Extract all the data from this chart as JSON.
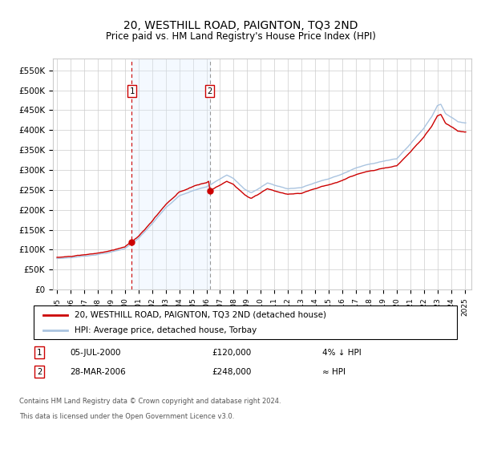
{
  "title": "20, WESTHILL ROAD, PAIGNTON, TQ3 2ND",
  "subtitle": "Price paid vs. HM Land Registry's House Price Index (HPI)",
  "title_fontsize": 10,
  "subtitle_fontsize": 8.5,
  "ylabel_ticks": [
    "£0",
    "£50K",
    "£100K",
    "£150K",
    "£200K",
    "£250K",
    "£300K",
    "£350K",
    "£400K",
    "£450K",
    "£500K",
    "£550K"
  ],
  "ytick_vals": [
    0,
    50000,
    100000,
    150000,
    200000,
    250000,
    300000,
    350000,
    400000,
    450000,
    500000,
    550000
  ],
  "ylim": [
    0,
    580000
  ],
  "xlim_start": 1994.7,
  "xlim_end": 2025.5,
  "sale1_date": 2000.51,
  "sale1_price": 120000,
  "sale1_label": "1",
  "sale2_date": 2006.24,
  "sale2_price": 248000,
  "sale2_label": "2",
  "hpi_line_color": "#aac4e0",
  "price_line_color": "#cc0000",
  "sale_dot_color": "#cc0000",
  "shade_color": "#ddeeff",
  "vline1_color": "#cc0000",
  "vline2_color": "#999999",
  "grid_color": "#cccccc",
  "background_color": "#ffffff",
  "legend_line1": "20, WESTHILL ROAD, PAIGNTON, TQ3 2ND (detached house)",
  "legend_line2": "HPI: Average price, detached house, Torbay",
  "annotation1_date": "05-JUL-2000",
  "annotation1_price": "£120,000",
  "annotation1_rel": "4% ↓ HPI",
  "annotation2_date": "28-MAR-2006",
  "annotation2_price": "£248,000",
  "annotation2_rel": "≈ HPI",
  "footnote1": "Contains HM Land Registry data © Crown copyright and database right 2024.",
  "footnote2": "This data is licensed under the Open Government Licence v3.0."
}
